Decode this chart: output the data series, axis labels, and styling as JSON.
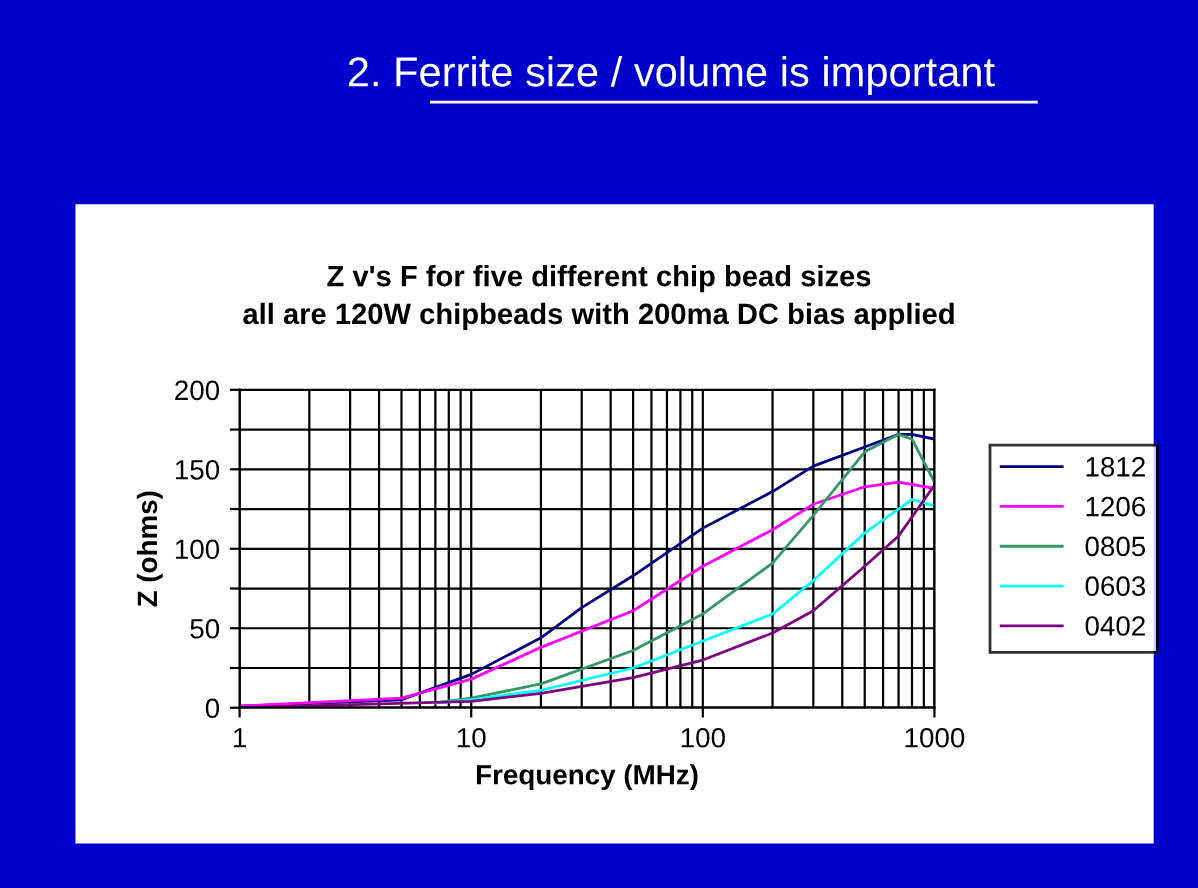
{
  "chart_data": {
    "type": "line",
    "title": "2. Ferrite size / volume is important",
    "subtitle": "Z v's F for five different chip bead sizes\nall are 120W chipbeads with 200ma DC bias applied",
    "xlabel": "Frequency (MHz)",
    "ylabel": "Z (ohms)",
    "log": "x",
    "xlim": [
      1,
      1000
    ],
    "xticks": [
      1,
      10,
      100,
      1000
    ],
    "ylim": [
      0,
      200
    ],
    "yticks": [
      0,
      {
        "value": 25,
        "label": null
      },
      50,
      {
        "value": 75,
        "label": null
      },
      100,
      {
        "value": 125,
        "label": null
      },
      150,
      {
        "value": 175,
        "label": null
      },
      200
    ],
    "grid": true,
    "legend": "right",
    "marker": "none",
    "line_style": "solid",
    "series": [
      {
        "name": "1812",
        "color": "#000080",
        "x": [
          1,
          5,
          10,
          20,
          30,
          50,
          100,
          200,
          300,
          500,
          700,
          800,
          1000
        ],
        "values": [
          1,
          5,
          21,
          44,
          63,
          83,
          113,
          136,
          152,
          164,
          172,
          172,
          169
        ]
      },
      {
        "name": "1206",
        "color": "#ff00ff",
        "x": [
          1,
          5,
          10,
          20,
          50,
          100,
          200,
          300,
          500,
          700,
          1000
        ],
        "values": [
          1,
          6,
          18,
          38,
          61,
          89,
          112,
          128,
          139,
          142,
          138
        ]
      },
      {
        "name": "0805",
        "color": "#339966",
        "x": [
          7,
          10,
          20,
          50,
          100,
          200,
          300,
          500,
          700,
          800,
          1000
        ],
        "values": [
          3,
          6,
          15,
          36,
          59,
          91,
          121,
          161,
          172,
          169,
          142
        ]
      },
      {
        "name": "0603",
        "color": "#00ffff",
        "x": [
          7,
          10,
          20,
          50,
          100,
          200,
          300,
          500,
          800,
          1000
        ],
        "values": [
          3,
          5,
          11,
          25,
          42,
          59,
          80,
          110,
          131,
          127
        ]
      },
      {
        "name": "0402",
        "color": "#800080",
        "x": [
          1,
          10,
          20,
          50,
          100,
          200,
          300,
          500,
          700,
          1000
        ],
        "values": [
          0,
          4,
          9,
          19,
          30,
          47,
          61,
          89,
          108,
          140
        ]
      }
    ]
  }
}
